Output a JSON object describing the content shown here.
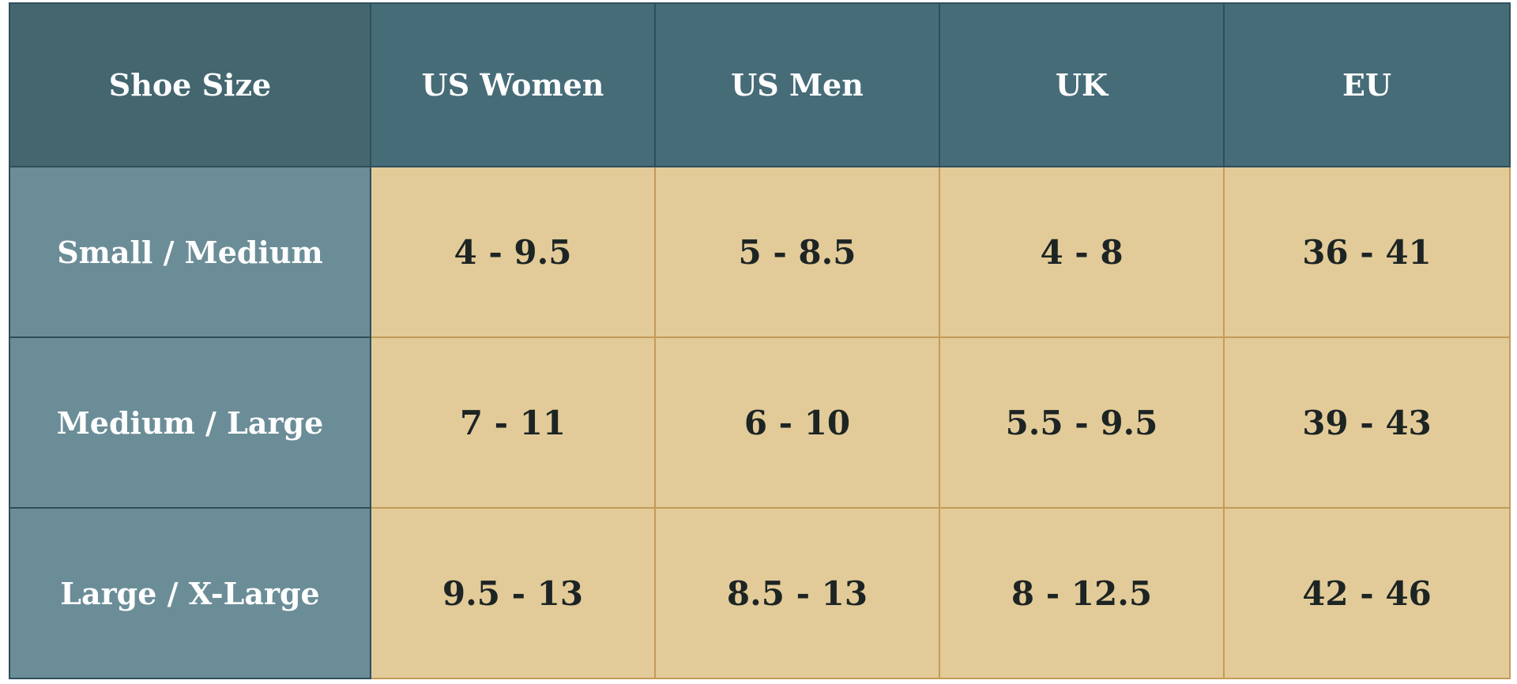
{
  "table": {
    "header": [
      "Shoe Size",
      "US Women",
      "US Men",
      "UK",
      "EU"
    ],
    "rows": [
      [
        "Small / Medium",
        "4 - 9.5",
        "5 - 8.5",
        "4 - 8",
        "36 - 41"
      ],
      [
        "Medium / Large",
        "7 - 11",
        "6 - 10",
        "5.5 - 9.5",
        "39 - 43"
      ],
      [
        "Large / X-Large",
        "9.5 - 13",
        "8.5 - 13",
        "8 - 12.5",
        "42 - 46"
      ]
    ]
  }
}
